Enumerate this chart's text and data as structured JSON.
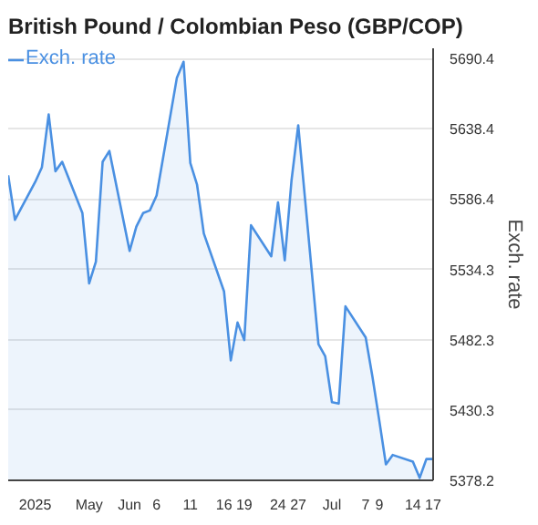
{
  "chart_data": {
    "type": "area",
    "title": "British Pound / Colombian Peso (GBP/COP)",
    "ylabel": "Exch. rate",
    "x": [
      "2025-05-15",
      "2025-05-16",
      "2025-05-19",
      "2025-05-20",
      "2025-05-21",
      "2025-05-22",
      "2025-05-23",
      "2025-05-26",
      "2025-05-27",
      "2025-05-28",
      "2025-05-29",
      "2025-05-30",
      "2025-06-02",
      "2025-06-03",
      "2025-06-04",
      "2025-06-05",
      "2025-06-06",
      "2025-06-09",
      "2025-06-10",
      "2025-06-11",
      "2025-06-12",
      "2025-06-13",
      "2025-06-16",
      "2025-06-17",
      "2025-06-18",
      "2025-06-19",
      "2025-06-20",
      "2025-06-23",
      "2025-06-24",
      "2025-06-25",
      "2025-06-26",
      "2025-06-27",
      "2025-06-30",
      "2025-07-01",
      "2025-07-02",
      "2025-07-03",
      "2025-07-04",
      "2025-07-07",
      "2025-07-08",
      "2025-07-09",
      "2025-07-10",
      "2025-07-11",
      "2025-07-14",
      "2025-07-15",
      "2025-07-16",
      "2025-07-17"
    ],
    "series": [
      {
        "name": "Exch. rate",
        "color": "#4a90e2",
        "values": [
          5604,
          5571,
          5599,
          5610,
          5649,
          5607,
          5614,
          5576,
          5524,
          5540,
          5614,
          5622,
          5548,
          5566,
          5576,
          5578,
          5589,
          5676,
          5688,
          5613,
          5597,
          5561,
          5518,
          5467,
          5495,
          5482,
          5567,
          5544,
          5584,
          5541,
          5600,
          5641,
          5479,
          5470,
          5436,
          5435,
          5507,
          5484,
          5455,
          5423,
          5390,
          5397,
          5392,
          5380,
          5394,
          5394
        ]
      }
    ],
    "xlim": [
      "2025-05-15",
      "2025-07-17"
    ],
    "xticks": [
      {
        "value": "2025-05-19",
        "label": "2025"
      },
      {
        "value": "2025-05-27",
        "label": "May"
      },
      {
        "value": "2025-06-02",
        "label": "Jun"
      },
      {
        "value": "2025-06-06",
        "label": "6"
      },
      {
        "value": "2025-06-11",
        "label": "11"
      },
      {
        "value": "2025-06-16",
        "label": "16"
      },
      {
        "value": "2025-06-19",
        "label": "19"
      },
      {
        "value": "2025-06-24",
        "label": "24"
      },
      {
        "value": "2025-06-27",
        "label": "27"
      },
      {
        "value": "2025-07-02",
        "label": "Jul"
      },
      {
        "value": "2025-07-07",
        "label": "7"
      },
      {
        "value": "2025-07-09",
        "label": "9"
      },
      {
        "value": "2025-07-14",
        "label": "14"
      },
      {
        "value": "2025-07-17",
        "label": "17"
      }
    ],
    "ylim": [
      5378.2,
      5698
    ],
    "yticks": [
      5378.2,
      5430.3,
      5482.3,
      5534.3,
      5586.4,
      5638.4,
      5690.4
    ],
    "grid": "y",
    "legend": "top left"
  }
}
